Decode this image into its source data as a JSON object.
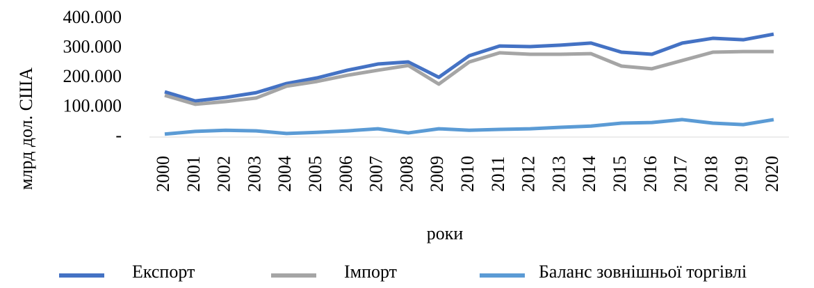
{
  "chart_data": {
    "type": "line",
    "y_axis_label": "млрд дол. США",
    "x_axis_label": "роки",
    "categories": [
      "2000",
      "2001",
      "2002",
      "2003",
      "2004",
      "2005",
      "2006",
      "2007",
      "2008",
      "2009",
      "2010",
      "2011",
      "2012",
      "2013",
      "2014",
      "2015",
      "2016",
      "2017",
      "2018",
      "2019",
      "2020"
    ],
    "series": [
      {
        "name": "Експорт",
        "color": "#4472c4",
        "values": [
          153000,
          122000,
          134000,
          150000,
          181000,
          200000,
          226000,
          247000,
          254000,
          202000,
          275000,
          308000,
          306000,
          311000,
          318000,
          287000,
          280000,
          318000,
          334000,
          329000,
          348000
        ]
      },
      {
        "name": "Імпорт",
        "color": "#a5a5a5",
        "values": [
          141000,
          111000,
          120000,
          132000,
          172000,
          188000,
          209000,
          226000,
          242000,
          179000,
          254000,
          285000,
          280000,
          280000,
          282000,
          240000,
          231000,
          259000,
          287000,
          289000,
          289000
        ]
      },
      {
        "name": "Баланс зовнішньої торгівлі",
        "color": "#5b9bd5",
        "values": [
          10000,
          19000,
          23000,
          21000,
          12000,
          16000,
          21000,
          28000,
          14000,
          28000,
          23000,
          26000,
          28000,
          33000,
          37000,
          47000,
          49000,
          59000,
          47000,
          42000,
          59000
        ]
      }
    ],
    "ylim": [
      0,
      400000
    ],
    "yticks": [
      {
        "value": 0,
        "label": "-"
      },
      {
        "value": 100000,
        "label": "100.000"
      },
      {
        "value": 200000,
        "label": "200.000"
      },
      {
        "value": 300000,
        "label": "300.000"
      },
      {
        "value": 400000,
        "label": "400.000"
      }
    ],
    "grid": false
  }
}
